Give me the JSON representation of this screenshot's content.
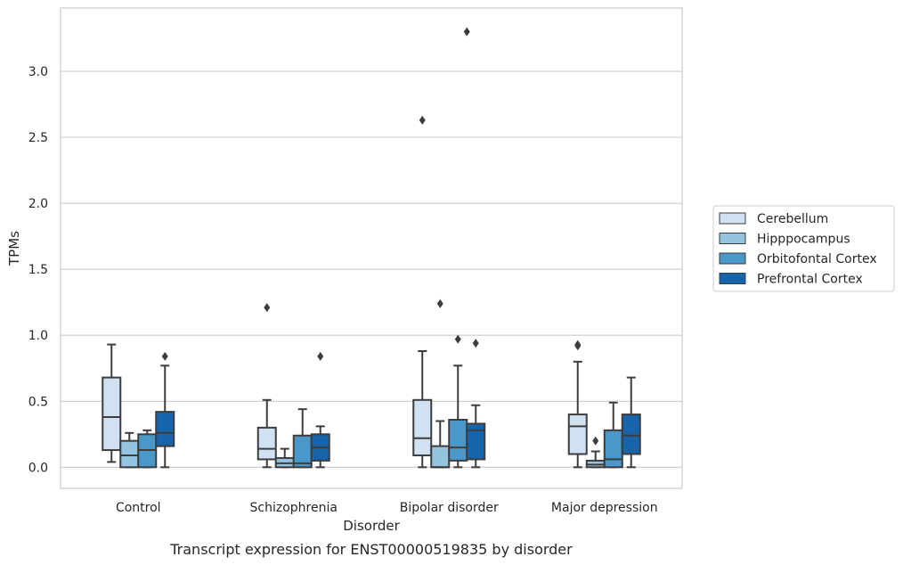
{
  "caption": "Transcript expression for ENST00000519835 by disorder",
  "chart_data": {
    "type": "box",
    "xlabel": "Disorder",
    "ylabel": "TPMs",
    "ylim": [
      -0.16,
      3.48
    ],
    "yticks": [
      "0.0",
      "0.5",
      "1.0",
      "1.5",
      "2.0",
      "2.5",
      "3.0"
    ],
    "grid": "horizontal",
    "legend_position": "right",
    "categories": [
      "Control",
      "Schizophrenia",
      "Bipolar disorder",
      "Major depression"
    ],
    "series": [
      {
        "name": "Cerebellum",
        "color": "#d0e1f2",
        "boxes": [
          {
            "whislo": 0.04,
            "q1": 0.13,
            "med": 0.38,
            "q3": 0.68,
            "whishi": 0.93,
            "fliers": []
          },
          {
            "whislo": 0.0,
            "q1": 0.06,
            "med": 0.14,
            "q3": 0.3,
            "whishi": 0.51,
            "fliers": [
              1.21
            ]
          },
          {
            "whislo": 0.0,
            "q1": 0.09,
            "med": 0.22,
            "q3": 0.51,
            "whishi": 0.88,
            "fliers": [
              2.63
            ]
          },
          {
            "whislo": 0.0,
            "q1": 0.1,
            "med": 0.31,
            "q3": 0.4,
            "whishi": 0.8,
            "fliers": [
              0.92,
              0.93
            ]
          }
        ]
      },
      {
        "name": "Hipppocampus",
        "color": "#94c4df",
        "boxes": [
          {
            "whislo": 0.0,
            "q1": 0.0,
            "med": 0.09,
            "q3": 0.2,
            "whishi": 0.26,
            "fliers": []
          },
          {
            "whislo": 0.0,
            "q1": 0.0,
            "med": 0.03,
            "q3": 0.07,
            "whishi": 0.14,
            "fliers": []
          },
          {
            "whislo": 0.0,
            "q1": 0.0,
            "med": 0.0,
            "q3": 0.16,
            "whishi": 0.35,
            "fliers": [
              1.24
            ]
          },
          {
            "whislo": 0.0,
            "q1": 0.0,
            "med": 0.02,
            "q3": 0.05,
            "whishi": 0.12,
            "fliers": [
              0.2
            ]
          }
        ]
      },
      {
        "name": "Orbitofontal Cortex",
        "color": "#4a98c9",
        "boxes": [
          {
            "whislo": 0.0,
            "q1": 0.0,
            "med": 0.13,
            "q3": 0.25,
            "whishi": 0.28,
            "fliers": []
          },
          {
            "whislo": 0.0,
            "q1": 0.0,
            "med": 0.03,
            "q3": 0.24,
            "whishi": 0.44,
            "fliers": []
          },
          {
            "whislo": 0.0,
            "q1": 0.05,
            "med": 0.15,
            "q3": 0.36,
            "whishi": 0.77,
            "fliers": [
              0.97
            ]
          },
          {
            "whislo": 0.0,
            "q1": 0.0,
            "med": 0.06,
            "q3": 0.28,
            "whishi": 0.49,
            "fliers": []
          }
        ]
      },
      {
        "name": "Prefrontal Cortex",
        "color": "#1764ab",
        "boxes": [
          {
            "whislo": 0.0,
            "q1": 0.16,
            "med": 0.26,
            "q3": 0.42,
            "whishi": 0.77,
            "fliers": [
              0.84
            ]
          },
          {
            "whislo": 0.0,
            "q1": 0.05,
            "med": 0.15,
            "q3": 0.25,
            "whishi": 0.31,
            "fliers": [
              0.84
            ]
          },
          {
            "whislo": 0.0,
            "q1": 0.06,
            "med": 0.28,
            "q3": 0.33,
            "whishi": 0.47,
            "fliers": [
              0.94
            ]
          },
          {
            "whislo": 0.0,
            "q1": 0.1,
            "med": 0.24,
            "q3": 0.4,
            "whishi": 0.68,
            "fliers": []
          }
        ]
      }
    ],
    "extra_fliers": [
      {
        "category": 2,
        "series": 0,
        "value": 3.3
      }
    ]
  }
}
